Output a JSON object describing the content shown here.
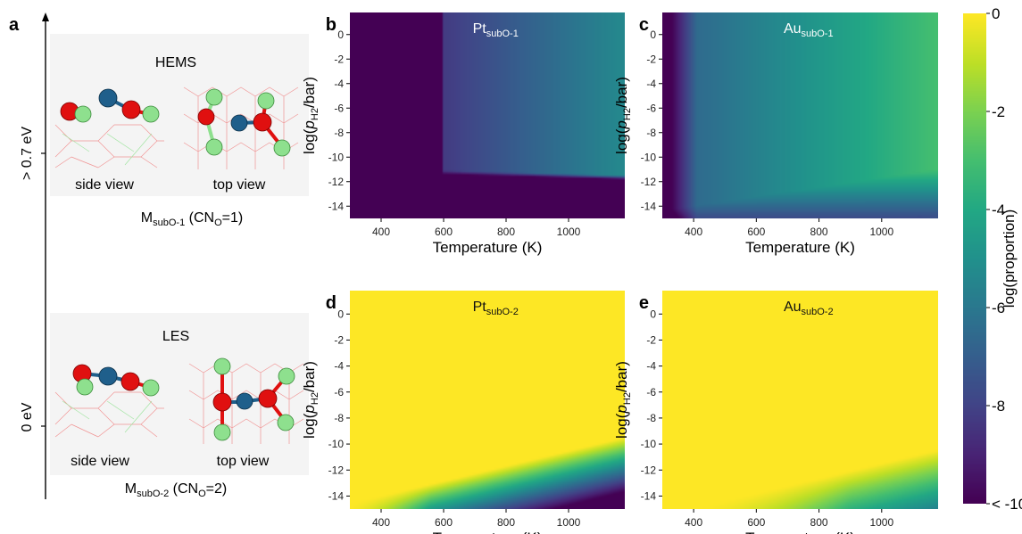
{
  "panel_labels": [
    "a",
    "b",
    "c",
    "d",
    "e"
  ],
  "panel_a": {
    "energy_high": "> 0.7 eV",
    "energy_low": "0 eV",
    "top_box": {
      "title": "HEMS",
      "side_caption": "side view",
      "top_caption": "top view",
      "name_main": "M",
      "name_sub": "subO-1",
      "name_rest_1": " (CN",
      "name_rest_sub": "O",
      "name_rest_2": "=1)"
    },
    "bottom_box": {
      "title": "LES",
      "side_caption": "side view",
      "top_caption": "top view",
      "name_main": "M",
      "name_sub": "subO-2",
      "name_rest_1": " (CN",
      "name_rest_sub": "O",
      "name_rest_2": "=2)"
    },
    "atom_colors": {
      "metal": "#1f5f8b",
      "oxygen": "#e01010",
      "hydrogen": "#8ee08e",
      "lattice": "#f08a8a"
    }
  },
  "colorbar": {
    "label": "log(proportion)",
    "ticks": [
      {
        "value": 0,
        "label": "0"
      },
      {
        "value": -2,
        "label": "-2"
      },
      {
        "value": -4,
        "label": "-4"
      },
      {
        "value": -6,
        "label": "-6"
      },
      {
        "value": -8,
        "label": "-8"
      },
      {
        "value": -10,
        "label": "< -10"
      }
    ],
    "range": [
      -10,
      0
    ],
    "colormap": "viridis"
  },
  "chart_data": [
    {
      "panel": "b",
      "type": "heatmap",
      "title_main": "Pt",
      "title_sub": "subO-1",
      "xlabel": "Temperature (K)",
      "ylabel_pre": "log(",
      "ylabel_p": "p",
      "ylabel_sub": "H2",
      "ylabel_post": "/bar)",
      "xlim": [
        300,
        1180
      ],
      "ylim": [
        -15,
        1.8
      ],
      "xticks": [
        400,
        600,
        800,
        1000
      ],
      "yticks": [
        0,
        -2,
        -4,
        -6,
        -8,
        -10,
        -12,
        -14
      ],
      "z_range": [
        -10,
        0
      ],
      "description_values": {
        "low_T_region_value": -10,
        "high_T_high_p_value": -5.3
      }
    },
    {
      "panel": "c",
      "type": "heatmap",
      "title_main": "Au",
      "title_sub": "subO-1",
      "xlabel": "Temperature (K)",
      "ylabel_pre": "log(",
      "ylabel_p": "p",
      "ylabel_sub": "H2",
      "ylabel_post": "/bar)",
      "xlim": [
        300,
        1180
      ],
      "ylim": [
        -15,
        1.8
      ],
      "xticks": [
        400,
        600,
        800,
        1000
      ],
      "yticks": [
        0,
        -2,
        -4,
        -6,
        -8,
        -10,
        -12,
        -14
      ],
      "z_range": [
        -10,
        0
      ],
      "description_values": {
        "low_T_region_value": -10,
        "high_T_high_p_value": -2.9
      }
    },
    {
      "panel": "d",
      "type": "heatmap",
      "title_main": "Pt",
      "title_sub": "subO-2",
      "xlabel": "Temperature (K)",
      "ylabel_pre": "log(",
      "ylabel_p": "p",
      "ylabel_sub": "H2",
      "ylabel_post": "/bar)",
      "xlim": [
        300,
        1180
      ],
      "ylim": [
        -15,
        1.8
      ],
      "xticks": [
        400,
        600,
        800,
        1000
      ],
      "yticks": [
        0,
        -2,
        -4,
        -6,
        -8,
        -10,
        -12,
        -14
      ],
      "z_range": [
        -10,
        0
      ],
      "description_values": {
        "bulk_value": 0,
        "high_T_low_p_value": -9.5
      }
    },
    {
      "panel": "e",
      "type": "heatmap",
      "title_main": "Au",
      "title_sub": "subO-2",
      "xlabel": "Temperature (K)",
      "ylabel_pre": "log(",
      "ylabel_p": "p",
      "ylabel_sub": "H2",
      "ylabel_post": "/bar)",
      "xlim": [
        300,
        1180
      ],
      "ylim": [
        -15,
        1.8
      ],
      "xticks": [
        400,
        600,
        800,
        1000
      ],
      "yticks": [
        0,
        -2,
        -4,
        -6,
        -8,
        -10,
        -12,
        -14
      ],
      "z_range": [
        -10,
        0
      ],
      "description_values": {
        "bulk_value": 0,
        "high_T_low_p_value": -4.2
      }
    }
  ]
}
